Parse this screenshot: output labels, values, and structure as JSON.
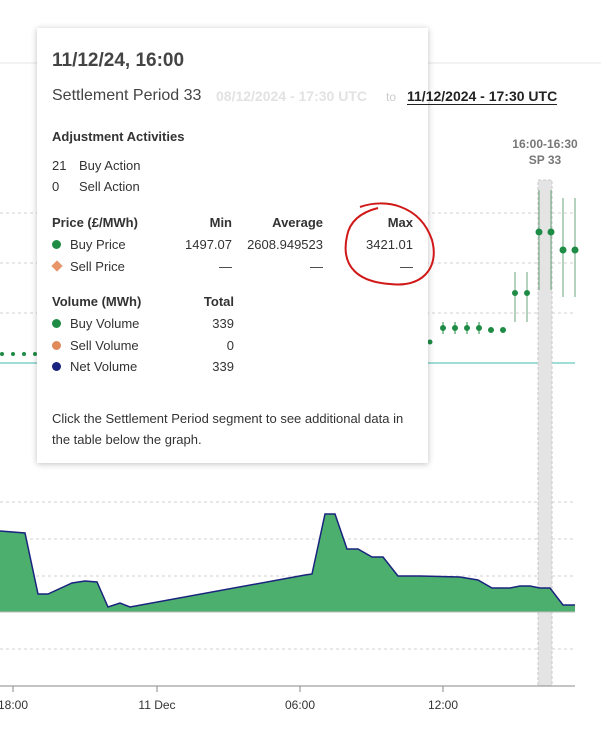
{
  "tooltip": {
    "title": "11/12/24, 16:00",
    "subtitle": "Settlement Period 33",
    "range_from": "08/12/2024 - 17:30 UTC",
    "range_joiner": "to",
    "range_to": "11/12/2024 - 17:30 UTC",
    "adjustment": {
      "heading": "Adjustment Activities",
      "rows": [
        [
          "21",
          "Buy Action"
        ],
        [
          "0",
          "Sell Action"
        ]
      ]
    },
    "price": {
      "headers": [
        "Price (£/MWh)",
        "Min",
        "Average",
        "Max"
      ],
      "rows": [
        [
          "Buy Price",
          "1497.07",
          "2608.949523",
          "3421.01"
        ],
        [
          "Sell Price",
          "—",
          "—",
          "—"
        ]
      ]
    },
    "volume": {
      "headers": [
        "Volume (MWh)",
        "Total"
      ],
      "rows": [
        [
          "Buy Volume",
          "339"
        ],
        [
          "Sell Volume",
          "0"
        ],
        [
          "Net Volume",
          "339"
        ]
      ]
    },
    "note": "Click the Settlement Period segment to see additional data in the table below the graph."
  },
  "highlight": {
    "time": "16:00-16:30",
    "period": "SP 33"
  },
  "x_axis": [
    "18:00",
    "11 Dec",
    "06:00",
    "12:00"
  ]
}
